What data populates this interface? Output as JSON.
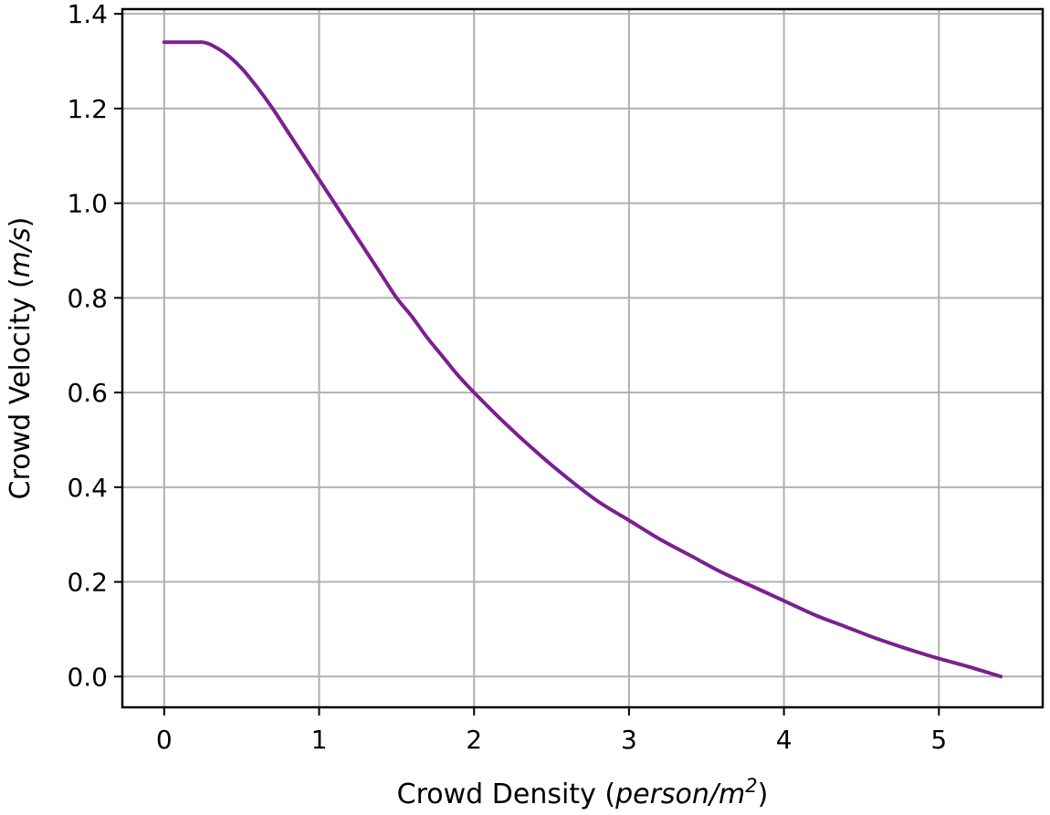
{
  "chart_data": {
    "type": "line",
    "title": "",
    "xlabel": {
      "prefix": "Crowd Density (",
      "unit_main": "person/m",
      "unit_superscript": "2",
      "suffix": ")"
    },
    "ylabel": {
      "prefix": "Crowd Velocity (",
      "unit": "m/s",
      "suffix": ")"
    },
    "xlim": [
      -0.27,
      5.67
    ],
    "ylim": [
      -0.065,
      1.41
    ],
    "xticks": [
      0,
      1,
      2,
      3,
      4,
      5
    ],
    "xtick_labels": [
      "0",
      "1",
      "2",
      "3",
      "4",
      "5"
    ],
    "yticks": [
      0.0,
      0.2,
      0.4,
      0.6,
      0.8,
      1.0,
      1.2,
      1.4
    ],
    "ytick_labels": [
      "0.0",
      "0.2",
      "0.4",
      "0.6",
      "0.8",
      "1.0",
      "1.2",
      "1.4"
    ],
    "grid": true,
    "legend": "none",
    "series": [
      {
        "color": "#7b2090",
        "x": [
          0.0,
          0.1,
          0.2,
          0.25,
          0.3,
          0.4,
          0.5,
          0.6,
          0.7,
          0.8,
          0.9,
          1.0,
          1.1,
          1.2,
          1.3,
          1.4,
          1.5,
          1.6,
          1.7,
          1.8,
          1.9,
          2.0,
          2.2,
          2.4,
          2.6,
          2.8,
          3.0,
          3.2,
          3.4,
          3.6,
          3.8,
          4.0,
          4.2,
          4.4,
          4.6,
          4.8,
          5.0,
          5.2,
          5.4
        ],
        "y": [
          1.34,
          1.34,
          1.34,
          1.34,
          1.335,
          1.315,
          1.285,
          1.245,
          1.2,
          1.15,
          1.1,
          1.05,
          1.0,
          0.95,
          0.9,
          0.85,
          0.8,
          0.76,
          0.715,
          0.675,
          0.635,
          0.6,
          0.535,
          0.475,
          0.42,
          0.37,
          0.33,
          0.29,
          0.255,
          0.22,
          0.19,
          0.16,
          0.13,
          0.105,
          0.08,
          0.058,
          0.038,
          0.02,
          0.0
        ]
      }
    ]
  }
}
